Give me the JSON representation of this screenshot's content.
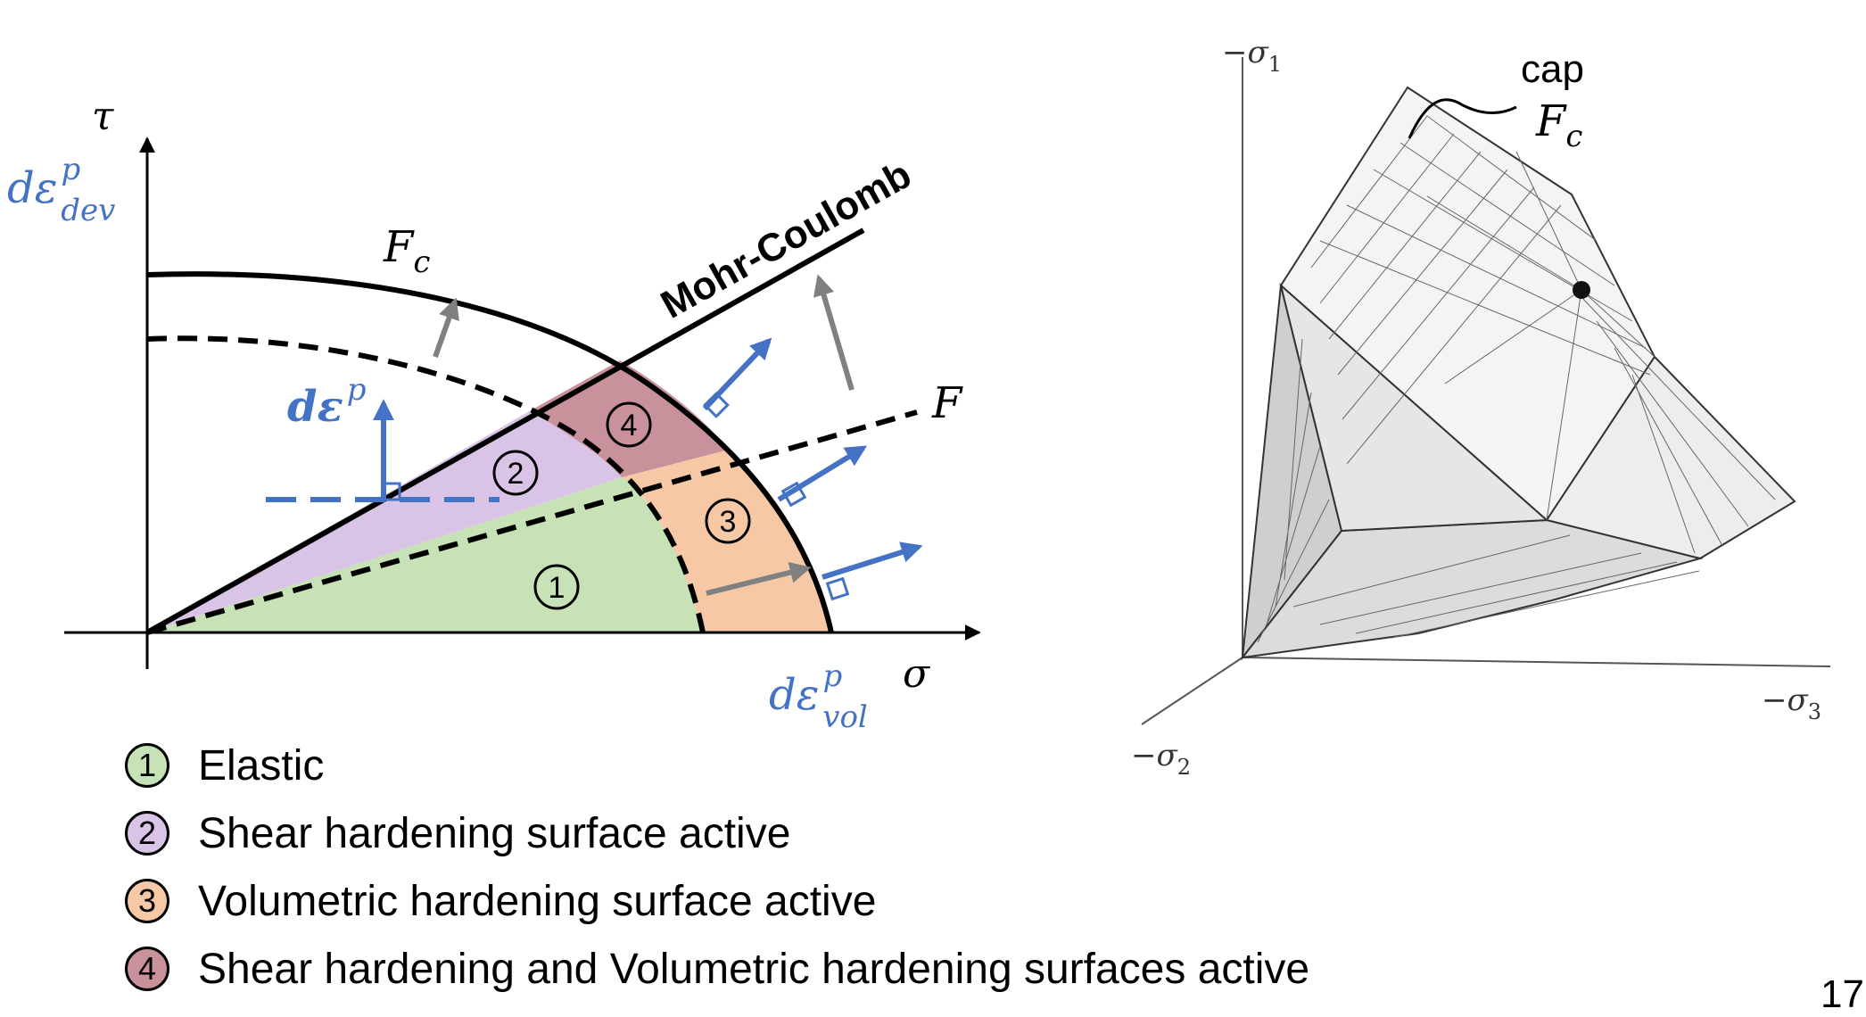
{
  "colors": {
    "elastic": "#c7e2b6",
    "shear": "#d9c3e6",
    "volumetric": "#f6c8a5",
    "both": "#c9919b",
    "flow": "#4472c4",
    "move": "#808080",
    "line": "#000000"
  },
  "left_diagram": {
    "tau_label": "τ",
    "strain_dev_base": "dε",
    "strain_dev_sup": "p",
    "strain_dev_sub": "dev",
    "sigma_label": "σ",
    "strain_vol_base": "dε",
    "strain_vol_sup": "p",
    "strain_vol_sub": "vol",
    "strain_inc_base": "dε",
    "strain_inc_sup": "p",
    "mohr_coulomb_label": "Mohr-Coulomb",
    "fc_base": "F",
    "fc_sub": "c",
    "f_label": "F",
    "region_1": "1",
    "region_2": "2",
    "region_3": "3",
    "region_4": "4"
  },
  "right_diagram": {
    "sigma1_label": "−σ",
    "sigma1_sub": "1",
    "sigma2_label": "−σ",
    "sigma2_sub": "2",
    "sigma3_label": "−σ",
    "sigma3_sub": "3",
    "cap_label": "cap",
    "cap_f_base": "F",
    "cap_f_sub": "c"
  },
  "legend": [
    {
      "number": "1",
      "text": "Elastic"
    },
    {
      "number": "2",
      "text": "Shear hardening surface active"
    },
    {
      "number": "3",
      "text": "Volumetric hardening surface active"
    },
    {
      "number": "4",
      "text": "Shear hardening and Volumetric hardening surfaces active"
    }
  ],
  "page_number": "17"
}
